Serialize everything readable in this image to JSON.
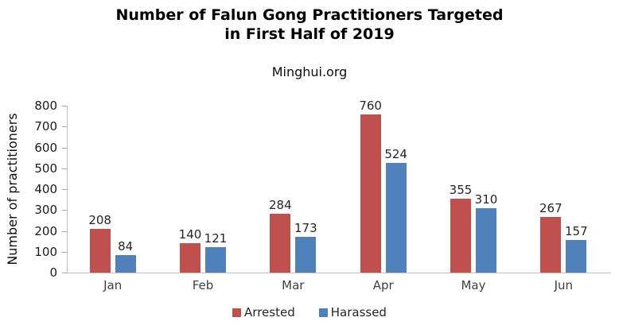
{
  "title": {
    "line1": "Number of Falun Gong Practitioners Targeted",
    "line2": "in First Half of 2019"
  },
  "subtitle": "Minghui.org",
  "chart_data": {
    "type": "bar",
    "categories": [
      "Jan",
      "Feb",
      "Mar",
      "Apr",
      "May",
      "Jun"
    ],
    "series": [
      {
        "name": "Arrested",
        "color": "#C0504D",
        "values": [
          208,
          140,
          284,
          760,
          355,
          267
        ]
      },
      {
        "name": "Harassed",
        "color": "#4F81BD",
        "values": [
          84,
          121,
          173,
          524,
          310,
          157
        ]
      }
    ],
    "title": "Number of Falun Gong Practitioners Targeted in First Half of 2019",
    "xlabel": "",
    "ylabel": "Number of practitioners",
    "ylim": [
      0,
      800
    ],
    "yticks": [
      0,
      100,
      200,
      300,
      400,
      500,
      600,
      700,
      800
    ],
    "grid": false,
    "data_labels": true,
    "legend_position": "bottom"
  },
  "colors": {
    "arrested": "#C0504D",
    "harassed": "#4F81BD",
    "axis_line": "#BFBFBF",
    "tick_mark": "#A6A6A6"
  }
}
